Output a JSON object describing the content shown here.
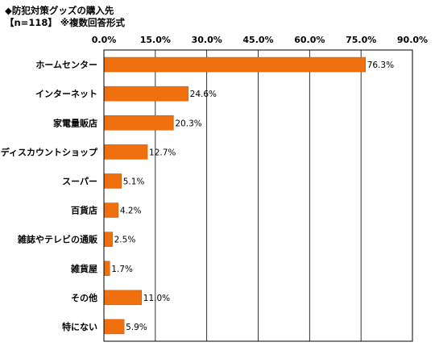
{
  "header": {
    "title": "◆防犯対策グッズの購入先",
    "subtitle": "【n=118】 ※複数回答形式"
  },
  "chart_data": {
    "type": "bar",
    "orientation": "horizontal",
    "title": "◆防犯対策グッズの購入先",
    "subtitle": "【n=118】 ※複数回答形式",
    "xlim": [
      0,
      90
    ],
    "ticks": [
      0,
      15,
      30,
      45,
      60,
      75,
      90
    ],
    "tick_labels": [
      "0.0%",
      "15.0%",
      "30.0%",
      "45.0%",
      "60.0%",
      "75.0%",
      "90.0%"
    ],
    "grid": true,
    "bar_color": "#f07010",
    "categories": [
      "ホームセンター",
      "インターネット",
      "家電量販店",
      "ディスカウントショップ",
      "スーパー",
      "百貨店",
      "雑誌やテレビの通販",
      "雑貨屋",
      "その他",
      "特にない"
    ],
    "values": [
      76.3,
      24.6,
      20.3,
      12.7,
      5.1,
      4.2,
      2.5,
      1.7,
      11.0,
      5.9
    ],
    "value_labels": [
      "76.3%",
      "24.6%",
      "20.3%",
      "12.7%",
      "5.1%",
      "4.2%",
      "2.5%",
      "1.7%",
      "11.0%",
      "5.9%"
    ]
  }
}
